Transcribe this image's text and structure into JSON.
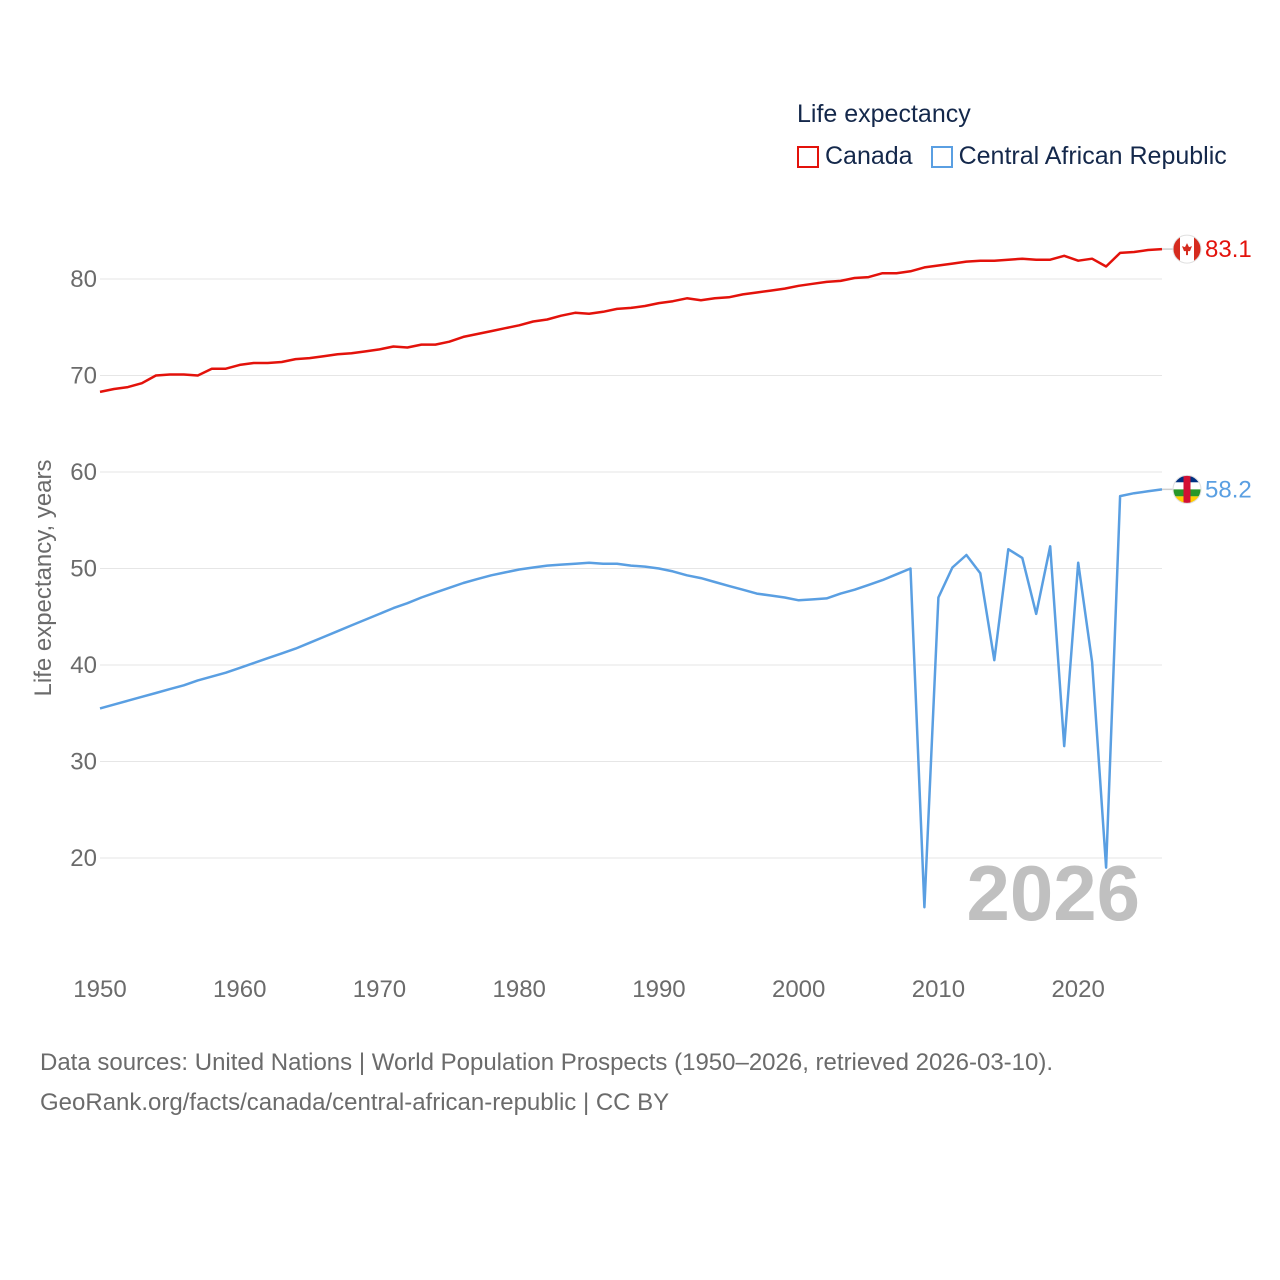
{
  "chart_data": {
    "type": "line",
    "legend_title": "Life expectancy",
    "ylabel": "Life expectancy, years",
    "xlabel": "",
    "xlim": [
      1950,
      2026
    ],
    "ylim": [
      10,
      85
    ],
    "y_ticks": [
      "20",
      "30",
      "40",
      "50",
      "60",
      "70",
      "80"
    ],
    "x_ticks": [
      "1950",
      "1960",
      "1970",
      "1980",
      "1990",
      "2000",
      "2010",
      "2020"
    ],
    "grid": true,
    "current_year": "2026",
    "x": [
      1950,
      1951,
      1952,
      1953,
      1954,
      1955,
      1956,
      1957,
      1958,
      1959,
      1960,
      1961,
      1962,
      1963,
      1964,
      1965,
      1966,
      1967,
      1968,
      1969,
      1970,
      1971,
      1972,
      1973,
      1974,
      1975,
      1976,
      1977,
      1978,
      1979,
      1980,
      1981,
      1982,
      1983,
      1984,
      1985,
      1986,
      1987,
      1988,
      1989,
      1990,
      1991,
      1992,
      1993,
      1994,
      1995,
      1996,
      1997,
      1998,
      1999,
      2000,
      2001,
      2002,
      2003,
      2004,
      2005,
      2006,
      2007,
      2008,
      2009,
      2010,
      2011,
      2012,
      2013,
      2014,
      2015,
      2016,
      2017,
      2018,
      2019,
      2020,
      2021,
      2022,
      2023,
      2024,
      2025,
      2026
    ],
    "series": [
      {
        "name": "Canada",
        "color": "#e3120b",
        "end_label": "83.1",
        "flag": "canada-flag",
        "values": [
          68.3,
          68.6,
          68.8,
          69.2,
          70.0,
          70.1,
          70.1,
          70.0,
          70.7,
          70.7,
          71.1,
          71.3,
          71.3,
          71.4,
          71.7,
          71.8,
          72.0,
          72.2,
          72.3,
          72.5,
          72.7,
          73.0,
          72.9,
          73.2,
          73.2,
          73.5,
          74.0,
          74.3,
          74.6,
          74.9,
          75.2,
          75.6,
          75.8,
          76.2,
          76.5,
          76.4,
          76.6,
          76.9,
          77.0,
          77.2,
          77.5,
          77.7,
          78.0,
          77.8,
          78.0,
          78.1,
          78.4,
          78.6,
          78.8,
          79.0,
          79.3,
          79.5,
          79.7,
          79.8,
          80.1,
          80.2,
          80.6,
          80.6,
          80.8,
          81.2,
          81.4,
          81.6,
          81.8,
          81.9,
          81.9,
          82.0,
          82.1,
          82.0,
          82.0,
          82.4,
          81.9,
          82.1,
          81.3,
          82.7,
          82.8,
          83.0,
          83.1
        ]
      },
      {
        "name": "Central African Republic",
        "color": "#5a9fe2",
        "end_label": "58.2",
        "flag": "central-african-republic-flag",
        "values": [
          35.5,
          35.9,
          36.3,
          36.7,
          37.1,
          37.5,
          37.9,
          38.4,
          38.8,
          39.2,
          39.7,
          40.2,
          40.7,
          41.2,
          41.7,
          42.3,
          42.9,
          43.5,
          44.1,
          44.7,
          45.3,
          45.9,
          46.4,
          47.0,
          47.5,
          48.0,
          48.5,
          48.9,
          49.3,
          49.6,
          49.9,
          50.1,
          50.3,
          50.4,
          50.5,
          50.6,
          50.5,
          50.5,
          50.3,
          50.2,
          50.0,
          49.7,
          49.3,
          49.0,
          48.6,
          48.2,
          47.8,
          47.4,
          47.2,
          47.0,
          46.7,
          46.8,
          46.9,
          47.4,
          47.8,
          48.3,
          48.8,
          49.4,
          50.0,
          14.9,
          47.0,
          50.1,
          51.4,
          49.5,
          40.5,
          52.0,
          51.1,
          45.3,
          52.3,
          31.6,
          50.6,
          40.3,
          19.0,
          57.5,
          57.8,
          58.0,
          58.2
        ]
      }
    ]
  },
  "source": {
    "line1": "Data sources: United Nations | World Population Prospects (1950–2026, retrieved 2026-03-10).",
    "line2": "GeoRank.org/facts/canada/central-african-republic | CC BY"
  }
}
